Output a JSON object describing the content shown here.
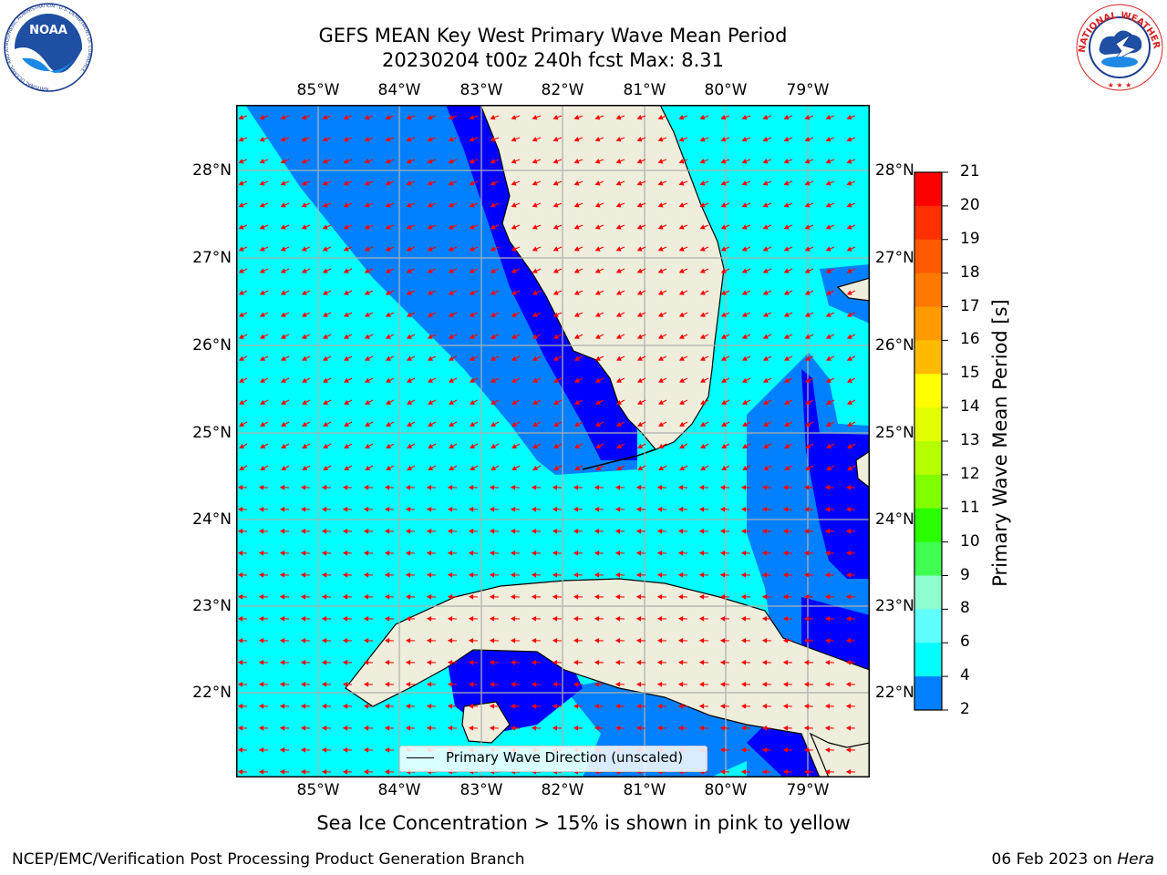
{
  "header": {
    "title_line1": "GEFS MEAN Key West Primary Wave Mean Period",
    "title_line2": "20230204 t00z 240h fcst   Max: 8.31"
  },
  "logos": {
    "left": {
      "name": "noaa-logo",
      "text": "NOAA",
      "ring_text": "NATIONAL OCEANIC AND ATMOSPHERIC ADMINISTRATION · U.S. DEPARTMENT OF COMMERCE"
    },
    "right": {
      "name": "nws-logo",
      "ring_text": "NATIONAL WEATHER SERVICE"
    }
  },
  "map": {
    "lon_labels": [
      "85°W",
      "84°W",
      "83°W",
      "82°W",
      "81°W",
      "80°W",
      "79°W"
    ],
    "lat_labels": [
      "28°N",
      "27°N",
      "26°N",
      "25°N",
      "24°N",
      "23°N",
      "22°N"
    ],
    "legend_label": "Primary Wave Direction (unscaled)",
    "colors": {
      "land": "#efeedc",
      "arrow": "#ff0000",
      "grid": "#b0b0b0"
    }
  },
  "colorbar": {
    "title": "Primary Wave Mean Period [s]",
    "ticks": [
      "21",
      "20",
      "19",
      "18",
      "17",
      "16",
      "15",
      "14",
      "13",
      "12",
      "11",
      "10",
      "9",
      "8",
      "6",
      "4",
      "2"
    ],
    "segment_colors": [
      "#ff0000",
      "#ff3000",
      "#ff5a00",
      "#ff7800",
      "#ff9a00",
      "#ffbb00",
      "#ffff00",
      "#e2ff00",
      "#b6ff00",
      "#80ff00",
      "#2aff00",
      "#40ff50",
      "#90ffd0",
      "#60ffff",
      "#00ffff",
      "#0080ff",
      "#0000ff"
    ]
  },
  "footer": {
    "sea_ice_note": "Sea Ice Concentration > 15% is shown in pink to yellow",
    "credit": "NCEP/EMC/Verification Post Processing Product Generation Branch",
    "date_prefix": "06 Feb 2023 on ",
    "machine": "Hera"
  }
}
